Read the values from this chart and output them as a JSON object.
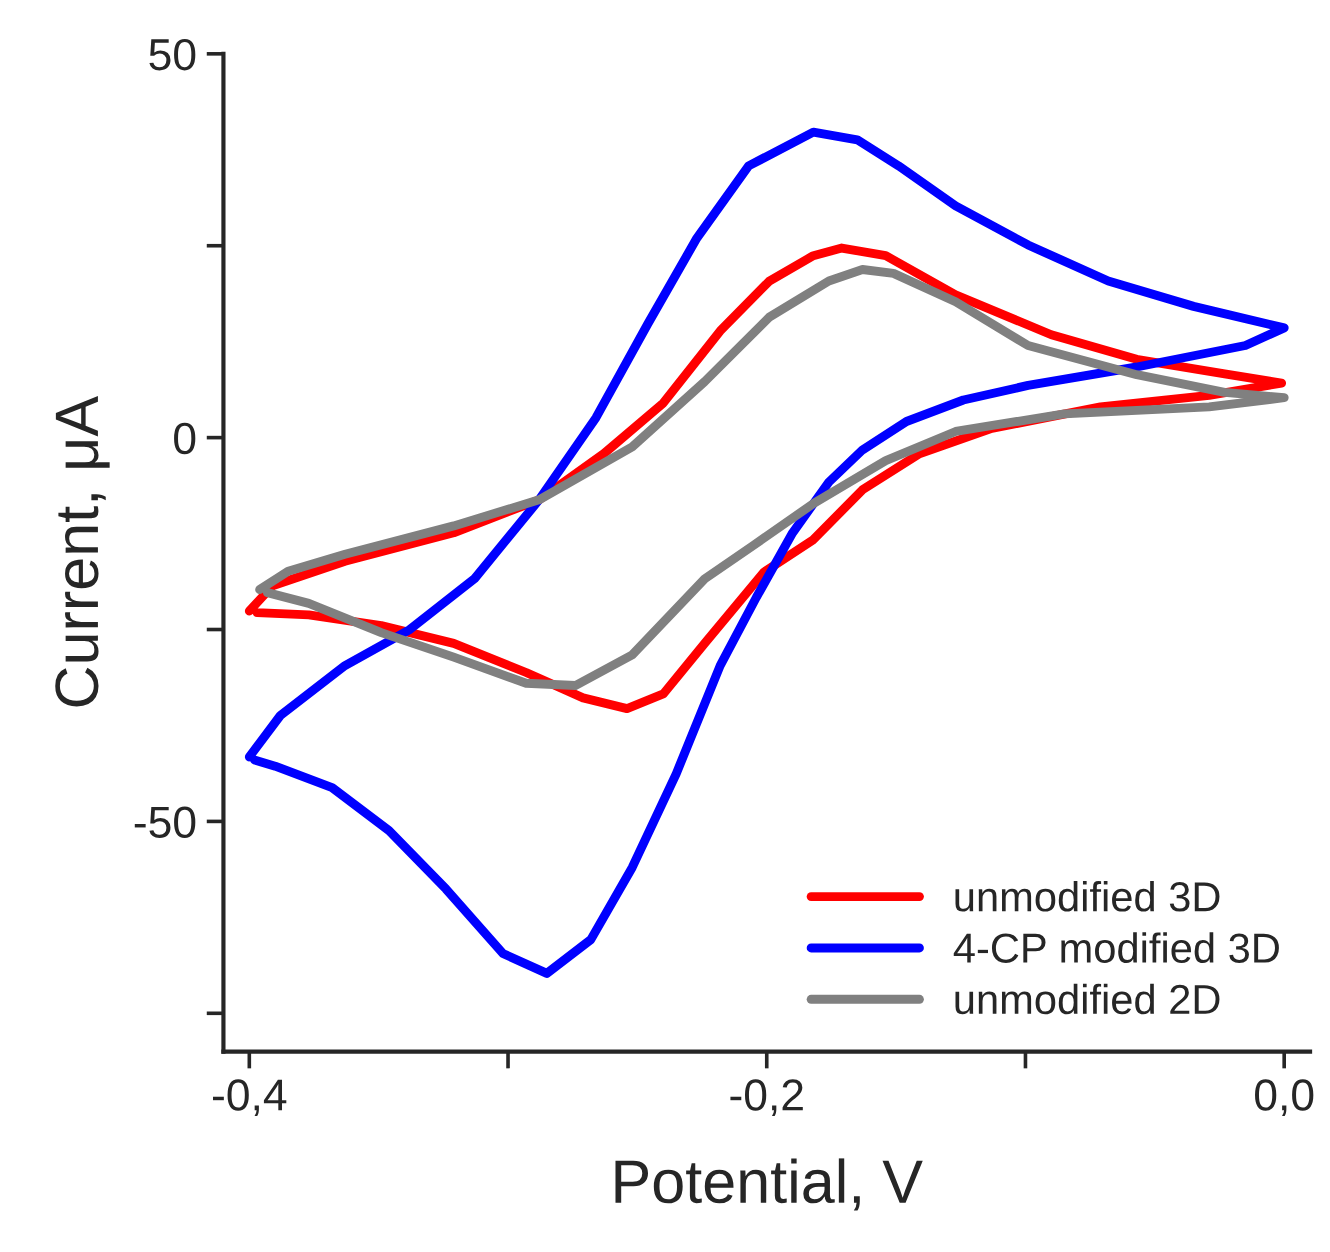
{
  "chart_data": {
    "type": "line",
    "xlabel": "Potential, V",
    "ylabel": "Current, μA",
    "xlim": [
      -0.41,
      0.01
    ],
    "ylim": [
      -80,
      50
    ],
    "xticks": [
      {
        "value": -0.4,
        "label": "-0,4"
      },
      {
        "value": -0.3,
        "label": null
      },
      {
        "value": -0.2,
        "label": "-0,2"
      },
      {
        "value": -0.1,
        "label": null
      },
      {
        "value": 0.0,
        "label": "0,0"
      }
    ],
    "yticks": [
      {
        "value": -75,
        "label": null
      },
      {
        "value": -50,
        "label": "-50"
      },
      {
        "value": -25,
        "label": null
      },
      {
        "value": 0,
        "label": "0"
      },
      {
        "value": 25,
        "label": null
      },
      {
        "value": 50,
        "label": "50"
      }
    ],
    "grid": false,
    "legend": "bottom right",
    "marker": "none",
    "line_style": "solid",
    "series": [
      {
        "name": "unmodified 3D",
        "color": "#ff0000",
        "x": [
          -0.4,
          -0.391,
          -0.363,
          -0.321,
          -0.288,
          -0.263,
          -0.24,
          -0.218,
          -0.199,
          -0.182,
          -0.171,
          -0.154,
          -0.127,
          -0.09,
          -0.057,
          -0.023,
          -0.001,
          -0.029,
          -0.071,
          -0.113,
          -0.141,
          -0.163,
          -0.182,
          -0.201,
          -0.224,
          -0.24,
          -0.254,
          -0.271,
          -0.293,
          -0.321,
          -0.349,
          -0.377,
          -0.397
        ],
        "values": [
          -22.6,
          -19.3,
          -16.1,
          -12.4,
          -8.1,
          -2.1,
          4.5,
          13.9,
          20.4,
          23.7,
          24.7,
          23.7,
          18.6,
          13.4,
          10.2,
          8.3,
          7.1,
          5.5,
          4,
          1.2,
          -2.1,
          -6.8,
          -13.3,
          -17.5,
          -26.8,
          -33.4,
          -35.3,
          -33.9,
          -30.6,
          -26.8,
          -24.5,
          -23.1,
          -22.8
        ]
      },
      {
        "name": "4-CP modified 3D",
        "color": "#0000ff",
        "x": [
          -0.4,
          -0.388,
          -0.363,
          -0.338,
          -0.313,
          -0.288,
          -0.266,
          -0.246,
          -0.227,
          -0.207,
          -0.182,
          -0.165,
          -0.149,
          -0.127,
          -0.099,
          -0.068,
          -0.035,
          0.0,
          -0.015,
          -0.057,
          -0.099,
          -0.124,
          -0.146,
          -0.163,
          -0.176,
          -0.19,
          -0.204,
          -0.218,
          -0.235,
          -0.252,
          -0.268,
          -0.285,
          -0.302,
          -0.324,
          -0.346,
          -0.368,
          -0.39,
          -0.398
        ],
        "values": [
          -41.6,
          -36.2,
          -29.7,
          -25,
          -18.4,
          -8.1,
          2.6,
          14.8,
          26,
          35.4,
          39.8,
          38.8,
          35.4,
          30.2,
          25.1,
          20.4,
          17.1,
          14.3,
          12,
          9.2,
          6.8,
          4.9,
          2.1,
          -1.6,
          -5.8,
          -12.4,
          -20.8,
          -29.7,
          -43.8,
          -56,
          -65.4,
          -69.8,
          -67.2,
          -58.8,
          -51.2,
          -45.6,
          -42.8,
          -42
        ]
      },
      {
        "name": "unmodified 2D",
        "color": "#808080",
        "x": [
          -0.396,
          -0.385,
          -0.363,
          -0.321,
          -0.288,
          -0.252,
          -0.224,
          -0.199,
          -0.176,
          -0.163,
          -0.151,
          -0.127,
          -0.099,
          -0.057,
          -0.023,
          0.0,
          -0.029,
          -0.085,
          -0.127,
          -0.154,
          -0.182,
          -0.205,
          -0.224,
          -0.252,
          -0.274,
          -0.293,
          -0.321,
          -0.349,
          -0.377,
          -0.393
        ],
        "values": [
          -19.8,
          -17.4,
          -15.2,
          -11.5,
          -8.1,
          -1.2,
          7.3,
          15.7,
          20.4,
          21.9,
          21.4,
          17.7,
          12,
          8.2,
          5.9,
          5.2,
          4,
          3.1,
          0.8,
          -3,
          -8.6,
          -14,
          -18.4,
          -28.3,
          -32.3,
          -32,
          -28.6,
          -25.4,
          -21.6,
          -20.2
        ]
      }
    ]
  }
}
